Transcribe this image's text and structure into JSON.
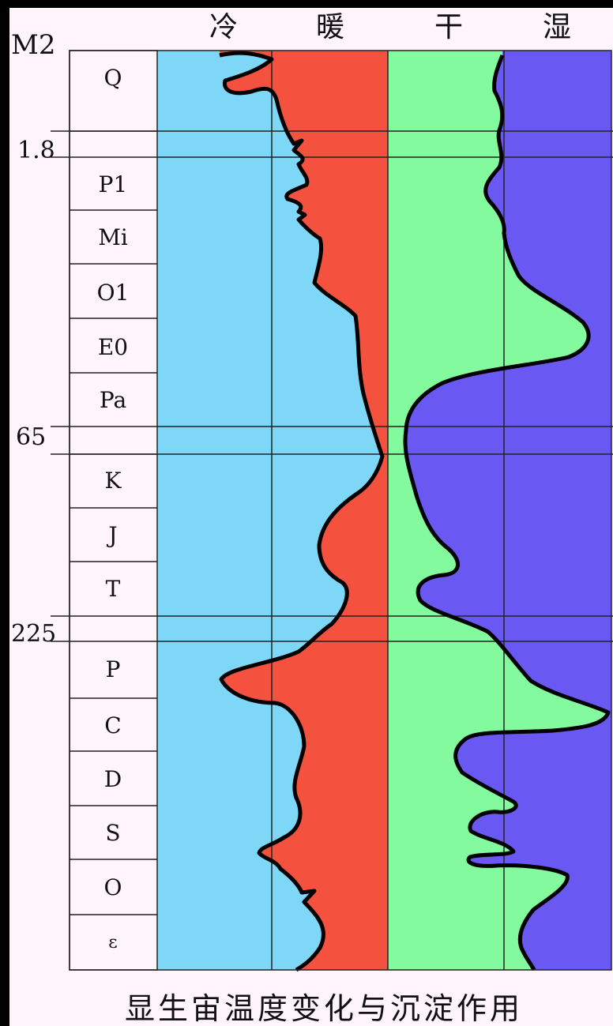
{
  "header": {
    "age_unit": "M2",
    "columns": [
      "冷",
      "暖",
      "干",
      "湿"
    ]
  },
  "age_markers": [
    "1.8",
    "65",
    "225"
  ],
  "periods": [
    "Q",
    "P1",
    "Mi",
    "O1",
    "E0",
    "Pa",
    "K",
    "J",
    "T",
    "P",
    "C",
    "D",
    "S",
    "O",
    "ε"
  ],
  "caption": "显生宙温度变化与沉淀作用",
  "colors": {
    "background": "#fff5fb",
    "cold": "#7fd7f8",
    "warm": "#f4513f",
    "dry": "#82fa9d",
    "wet": "#6a58f3"
  },
  "chart_data": {
    "type": "area",
    "temperature_curve": {
      "left_label": "冷",
      "right_label": "暖"
    },
    "moisture_curve": {
      "left_label": "干",
      "right_label": "湿"
    }
  }
}
